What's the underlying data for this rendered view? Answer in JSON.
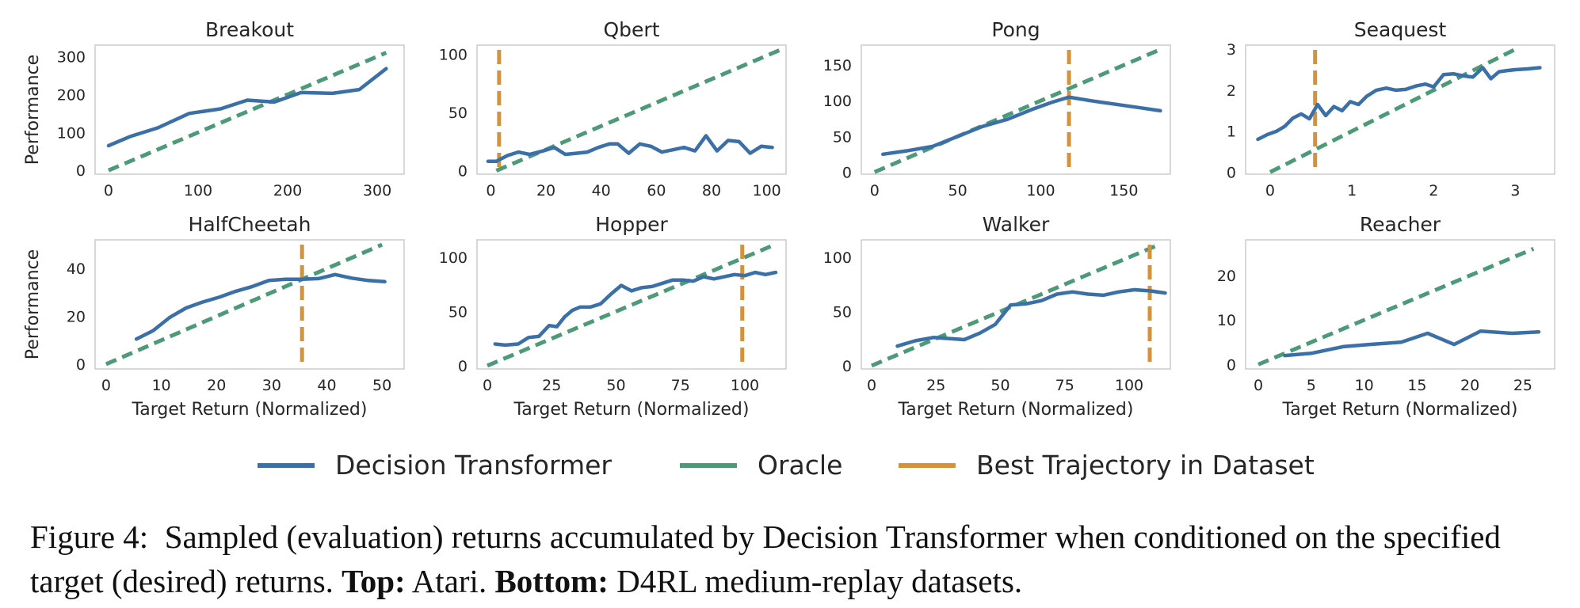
{
  "legend": [
    {
      "label": "Decision Transformer",
      "color": "#3a6fa8",
      "dash": "solid"
    },
    {
      "label": "Oracle",
      "color": "#4d9a78",
      "dash": "dashed"
    },
    {
      "label": "Best Trajectory in Dataset",
      "color": "#d4923a",
      "dash": "solid"
    }
  ],
  "caption": {
    "prefix": "Figure 4:",
    "text1": "Sampled (evaluation) returns accumulated by Decision Transformer when conditioned on the specified target (desired) returns.",
    "top_label": "Top:",
    "top_text": "Atari.",
    "bottom_label": "Bottom:",
    "bottom_text": "D4RL medium-replay datasets."
  },
  "colors": {
    "dt": "#3a6fa8",
    "oracle": "#4d9a78",
    "best": "#d4923a",
    "frame": "#cccccc"
  },
  "chart_data": [
    {
      "type": "line",
      "title": "Breakout",
      "ylabel": "Performance",
      "xlabel": "",
      "xlim": [
        -15,
        330
      ],
      "ylim": [
        -10,
        330
      ],
      "xticks": [
        0,
        100,
        200,
        300
      ],
      "yticks": [
        0,
        100,
        200,
        300
      ],
      "oracle": [
        [
          0,
          0
        ],
        [
          310,
          310
        ]
      ],
      "best_trajectory": null,
      "series": [
        {
          "name": "Decision Transformer",
          "x": [
            0,
            25,
            55,
            90,
            125,
            155,
            185,
            215,
            250,
            280,
            310
          ],
          "y": [
            65,
            90,
            112,
            150,
            162,
            185,
            180,
            205,
            203,
            213,
            268
          ]
        }
      ]
    },
    {
      "type": "line",
      "title": "Qbert",
      "ylabel": "",
      "xlabel": "",
      "xlim": [
        -5,
        107
      ],
      "ylim": [
        -3,
        108
      ],
      "xticks": [
        0,
        20,
        40,
        60,
        80,
        100
      ],
      "yticks": [
        0,
        50,
        100
      ],
      "oracle": [
        [
          2,
          0
        ],
        [
          105,
          104
        ]
      ],
      "best_trajectory": 3,
      "series": [
        {
          "name": "Decision Transformer",
          "x": [
            -1,
            2,
            6,
            10,
            14,
            19,
            23,
            27,
            31,
            35,
            39,
            43,
            46,
            50,
            54,
            58,
            62,
            66,
            70,
            74,
            78,
            82,
            86,
            90,
            94,
            98,
            102
          ],
          "y": [
            8,
            8,
            13,
            16,
            14,
            17,
            20,
            14,
            15,
            16,
            20,
            23,
            23,
            15,
            23,
            21,
            16,
            18,
            20,
            17,
            30,
            17,
            26,
            25,
            15,
            21,
            20
          ]
        }
      ]
    },
    {
      "type": "line",
      "title": "Pong",
      "ylabel": "",
      "xlabel": "",
      "xlim": [
        -8,
        178
      ],
      "ylim": [
        -3,
        178
      ],
      "xticks": [
        0,
        50,
        100,
        150
      ],
      "yticks": [
        0,
        50,
        100,
        150
      ],
      "oracle": [
        [
          0,
          0
        ],
        [
          172,
          172
        ]
      ],
      "best_trajectory": 117,
      "series": [
        {
          "name": "Decision Transformer",
          "x": [
            5,
            20,
            35,
            50,
            65,
            80,
            95,
            107,
            117,
            130,
            145,
            160,
            172
          ],
          "y": [
            25,
            30,
            36,
            50,
            64,
            74,
            88,
            98,
            105,
            100,
            95,
            90,
            86
          ]
        }
      ]
    },
    {
      "type": "line",
      "title": "Seaquest",
      "ylabel": "",
      "xlabel": "",
      "xlim": [
        -0.3,
        3.48
      ],
      "ylim": [
        -0.05,
        3.1
      ],
      "xticks": [
        0,
        1,
        2,
        3
      ],
      "yticks": [
        0,
        1,
        2,
        3
      ],
      "oracle": [
        [
          0,
          0
        ],
        [
          3,
          3
        ]
      ],
      "best_trajectory": 0.55,
      "series": [
        {
          "name": "Decision Transformer",
          "x": [
            -0.15,
            -0.03,
            0.08,
            0.18,
            0.28,
            0.38,
            0.48,
            0.58,
            0.68,
            0.78,
            0.88,
            0.98,
            1.08,
            1.18,
            1.3,
            1.42,
            1.54,
            1.66,
            1.78,
            1.9,
            2.0,
            2.12,
            2.24,
            2.36,
            2.48,
            2.6,
            2.7,
            2.8,
            2.9,
            3.0,
            3.15,
            3.3
          ],
          "y": [
            0.8,
            0.92,
            1.0,
            1.12,
            1.32,
            1.42,
            1.3,
            1.65,
            1.38,
            1.6,
            1.5,
            1.72,
            1.65,
            1.85,
            2.0,
            2.05,
            2.0,
            2.02,
            2.1,
            2.15,
            2.08,
            2.38,
            2.4,
            2.35,
            2.32,
            2.55,
            2.28,
            2.45,
            2.48,
            2.5,
            2.52,
            2.55
          ]
        }
      ]
    },
    {
      "type": "line",
      "title": "HalfCheetah",
      "ylabel": "Performance",
      "xlabel": "Target Return (Normalized)",
      "xlim": [
        -2,
        54
      ],
      "ylim": [
        -2,
        52
      ],
      "xticks": [
        0,
        10,
        20,
        30,
        40,
        50
      ],
      "yticks": [
        0,
        20,
        40
      ],
      "oracle": [
        [
          0,
          0
        ],
        [
          50,
          50
        ]
      ],
      "best_trajectory": 35.5,
      "series": [
        {
          "name": "Decision Transformer",
          "x": [
            5.5,
            8.5,
            11.5,
            14.5,
            17.5,
            20.5,
            23.5,
            26.5,
            29.5,
            32.5,
            35.5,
            38.5,
            41.5,
            44.5,
            47.5,
            50.5
          ],
          "y": [
            10.5,
            14,
            19.5,
            23.5,
            26,
            28,
            30.5,
            32.5,
            35,
            35.5,
            35.5,
            35.8,
            37.5,
            36,
            35,
            34.5
          ]
        }
      ]
    },
    {
      "type": "line",
      "title": "Hopper",
      "ylabel": "",
      "xlabel": "Target Return (Normalized)",
      "xlim": [
        -4,
        116
      ],
      "ylim": [
        -3,
        116
      ],
      "xticks": [
        0,
        25,
        50,
        75,
        100
      ],
      "yticks": [
        0,
        50,
        100
      ],
      "oracle": [
        [
          0,
          0
        ],
        [
          112,
          112
        ]
      ],
      "best_trajectory": 99,
      "series": [
        {
          "name": "Decision Transformer",
          "x": [
            3,
            7,
            12,
            16,
            20,
            24,
            27,
            30,
            33,
            36,
            40,
            44,
            48,
            52,
            56,
            60,
            64,
            68,
            72,
            76,
            80,
            84,
            88,
            92,
            96,
            100,
            104,
            108,
            112
          ],
          "y": [
            20,
            19,
            20,
            26,
            27,
            37,
            36,
            45,
            51,
            54,
            54,
            57,
            66,
            74,
            69,
            72,
            73,
            76,
            79,
            79,
            78,
            82,
            80,
            82,
            84,
            83,
            86,
            84,
            86
          ]
        }
      ]
    },
    {
      "type": "line",
      "title": "Walker",
      "ylabel": "",
      "xlabel": "Target Return (Normalized)",
      "xlim": [
        -4,
        116
      ],
      "ylim": [
        -3,
        116
      ],
      "xticks": [
        0,
        25,
        50,
        75,
        100
      ],
      "yticks": [
        0,
        50,
        100
      ],
      "oracle": [
        [
          0,
          0
        ],
        [
          112,
          112
        ]
      ],
      "best_trajectory": 108,
      "series": [
        {
          "name": "Decision Transformer",
          "x": [
            10,
            17,
            24,
            30,
            36,
            42,
            48,
            54,
            60,
            66,
            72,
            78,
            84,
            90,
            96,
            102,
            108,
            114
          ],
          "y": [
            18,
            23,
            26,
            25,
            24,
            30,
            38,
            56,
            57,
            60,
            66,
            68,
            66,
            65,
            68,
            70,
            69,
            67
          ]
        }
      ]
    },
    {
      "type": "line",
      "title": "Reacher",
      "ylabel": "",
      "xlabel": "Target Return (Normalized)",
      "xlim": [
        -1.2,
        28
      ],
      "ylim": [
        -1,
        28
      ],
      "xticks": [
        0,
        5,
        10,
        15,
        20,
        25
      ],
      "yticks": [
        0,
        10,
        20
      ],
      "oracle": [
        [
          0,
          0
        ],
        [
          26,
          26
        ]
      ],
      "best_trajectory": null,
      "series": [
        {
          "name": "Decision Transformer",
          "x": [
            2.5,
            5,
            8,
            10.5,
            13.5,
            16,
            18.5,
            21,
            24,
            26.5
          ],
          "y": [
            2,
            2.5,
            4,
            4.5,
            5,
            7,
            4.5,
            7.5,
            7,
            7.3
          ]
        }
      ]
    }
  ]
}
